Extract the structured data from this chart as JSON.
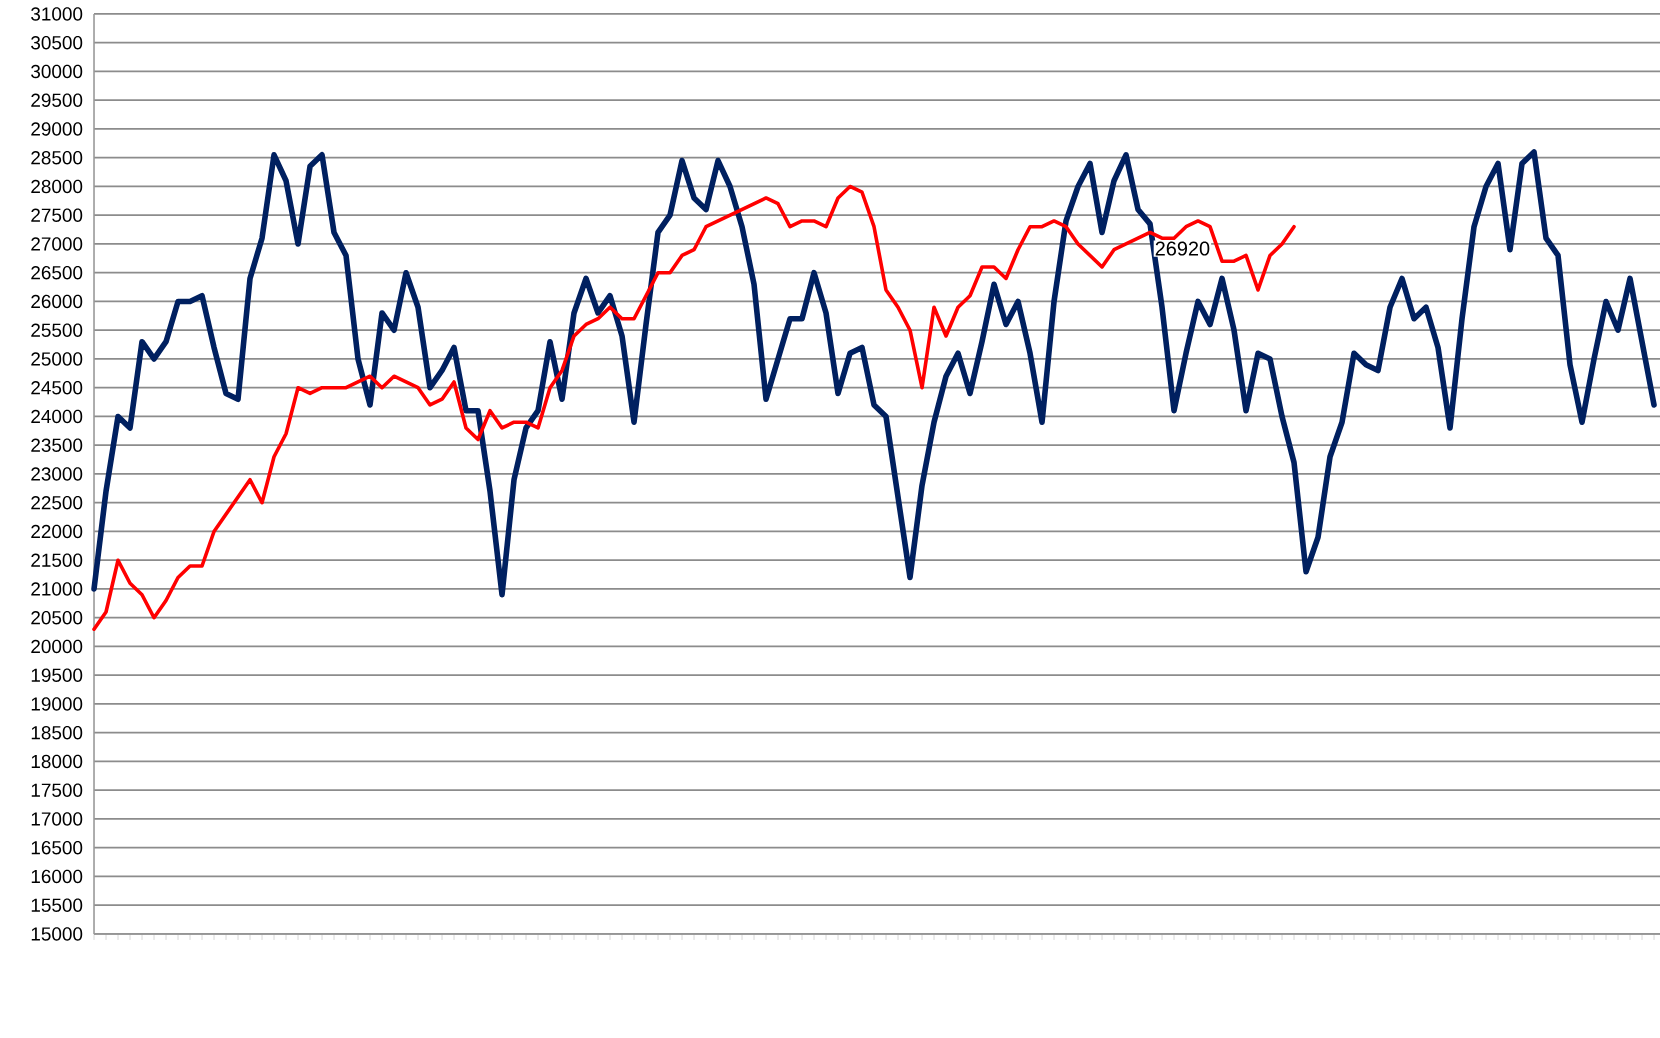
{
  "chart_data": {
    "type": "line",
    "categories": [
      null,
      null,
      null,
      null,
      null,
      null,
      null,
      null,
      null,
      null,
      null,
      null,
      null,
      null,
      null,
      null,
      null,
      null,
      null,
      null,
      null,
      null,
      null,
      null,
      null,
      null,
      null,
      null,
      null,
      null,
      null,
      null,
      null,
      null,
      null,
      null,
      null,
      null,
      null,
      null,
      null,
      null,
      null,
      null,
      null,
      null,
      null,
      null,
      null,
      null,
      null,
      null,
      null,
      null,
      null,
      null,
      null,
      null,
      null,
      null,
      null,
      null,
      null,
      null,
      null,
      null,
      null,
      null,
      null,
      null,
      null,
      null,
      null,
      null,
      null,
      null,
      null,
      null,
      null,
      null,
      null,
      null,
      null,
      null,
      null,
      null,
      null,
      null,
      null,
      null,
      null,
      null,
      null,
      null,
      null,
      null,
      null,
      null,
      null,
      null,
      null,
      null,
      null,
      null,
      null,
      null,
      null,
      null,
      null,
      null,
      null,
      null,
      null,
      null,
      null,
      null,
      null,
      null,
      null,
      null,
      null,
      null,
      null,
      null,
      null,
      null,
      null,
      null,
      null,
      null,
      null
    ],
    "series": [
      {
        "color": "#002060",
        "values": [
          21000,
          22700,
          24000,
          23800,
          25300,
          25000,
          25300,
          26000,
          26000,
          26100,
          25200,
          24400,
          24300,
          26400,
          27100,
          28550,
          28100,
          27000,
          28350,
          28550,
          27200,
          26800,
          25000,
          24200,
          25800,
          25500,
          26500,
          25900,
          24500,
          24800,
          25200,
          24100,
          24100,
          22700,
          20900,
          22900,
          23800,
          24100,
          25300,
          24300,
          25800,
          26400,
          25800,
          26100,
          25400,
          23900,
          25600,
          27200,
          27500,
          28450,
          27800,
          27600,
          28450,
          28000,
          27300,
          26300,
          24300,
          25000,
          25700,
          25700,
          26500,
          25800,
          24400,
          25100,
          25200,
          24200,
          24000,
          22600,
          21200,
          22800,
          23900,
          24700,
          25100,
          24400,
          25300,
          26300,
          25600,
          26000,
          25100,
          23900,
          26000,
          27400,
          28000,
          28400,
          27200,
          28100,
          28550,
          27600,
          27350,
          25900,
          24100,
          25100,
          26000,
          25600,
          26400,
          25500,
          24100,
          25100,
          25000,
          24000,
          23200,
          21300,
          21900,
          23300,
          23900,
          25100,
          24900,
          24800,
          25900,
          26400,
          25700,
          25900,
          25200,
          23800,
          25700,
          27300,
          28000,
          28400,
          26900,
          28400,
          28600,
          27100,
          26800,
          24900,
          23900,
          25000,
          26000,
          25500,
          26400,
          25300,
          24200
        ]
      },
      {
        "color": "#ff0000",
        "values": [
          20300,
          20600,
          21500,
          21100,
          20900,
          20500,
          20800,
          21200,
          21400,
          21400,
          22000,
          22300,
          22600,
          22900,
          22500,
          23300,
          23700,
          24500,
          24400,
          24500,
          24500,
          24500,
          24600,
          24700,
          24500,
          24700,
          24600,
          24500,
          24200,
          24300,
          24600,
          23800,
          23600,
          24100,
          23800,
          23900,
          23900,
          23800,
          24500,
          24800,
          25400,
          25600,
          25700,
          25900,
          25700,
          25700,
          26100,
          26500,
          26500,
          26800,
          26900,
          27300,
          27400,
          27500,
          27600,
          27700,
          27800,
          27700,
          27300,
          27400,
          27400,
          27300,
          27800,
          28000,
          27900,
          27300,
          26200,
          25900,
          25500,
          24500,
          25900,
          25400,
          25900,
          26100,
          26600,
          26600,
          26400,
          26900,
          27300,
          27300,
          27400,
          27300,
          27000,
          26800,
          26600,
          26900,
          27000,
          27100,
          27200,
          27100,
          27100,
          27300,
          27400,
          27300,
          26700,
          26700,
          26800,
          26200,
          26800,
          27000,
          27300,
          null,
          null,
          null,
          null,
          null,
          null,
          null,
          null,
          null,
          null,
          null,
          null,
          null,
          null,
          null,
          null,
          null,
          null,
          null,
          null,
          null,
          null,
          null,
          null,
          null,
          null,
          null,
          null,
          null,
          null
        ]
      }
    ],
    "ylim": [
      15000,
      31000
    ],
    "yticks": [
      15000,
      15500,
      16000,
      16500,
      17000,
      17500,
      18000,
      18500,
      19000,
      19500,
      20000,
      20500,
      21000,
      21500,
      22000,
      22500,
      23000,
      23500,
      24000,
      24500,
      25000,
      25500,
      26000,
      26500,
      27000,
      27500,
      28000,
      28500,
      29000,
      29500,
      30000,
      30500,
      31000
    ],
    "grid": "y",
    "marker": "none",
    "line_style": "solid",
    "annotations": [
      "26920"
    ]
  }
}
